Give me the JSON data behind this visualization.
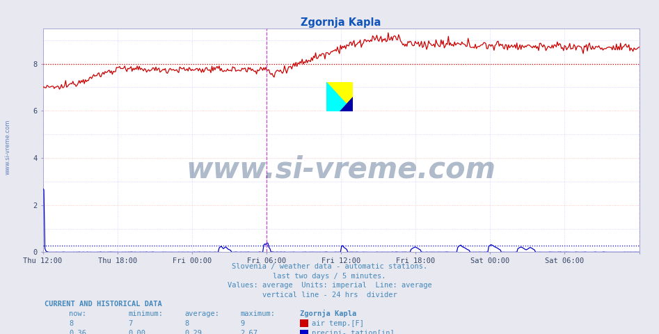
{
  "title": "Zgornja Kapla",
  "title_color": "#1155bb",
  "bg_color": "#e8e8f0",
  "plot_bg_color": "#ffffff",
  "grid_color_major": "#ffbbbb",
  "grid_color_minor": "#ccccff",
  "x_labels": [
    "Thu 12:00",
    "Thu 18:00",
    "Fri 00:00",
    "Fri 06:00",
    "Fri 12:00",
    "Fri 18:00",
    "Sat 00:00",
    "Sat 06:00"
  ],
  "ylim": [
    0,
    9.5
  ],
  "yticks": [
    0,
    2,
    4,
    6,
    8
  ],
  "air_temp_avg": 8.0,
  "air_temp_color": "#cc0000",
  "precip_avg": 0.29,
  "precip_color": "#0000cc",
  "vline_24h_color": "#cc44cc",
  "vline_end_color": "#cc44cc",
  "watermark_text": "www.si-vreme.com",
  "watermark_color": "#1a3a6a",
  "watermark_alpha": 0.35,
  "footer_lines": [
    "Slovenia / weather data - automatic stations.",
    "last two days / 5 minutes.",
    "Values: average  Units: imperial  Line: average",
    "vertical line - 24 hrs  divider"
  ],
  "footer_color": "#4488bb",
  "current_label": "CURRENT AND HISTORICAL DATA",
  "now_air": "8",
  "min_air": "7",
  "avg_air": "8",
  "max_air": "9",
  "now_precip": "0.36",
  "min_precip": "0.00",
  "avg_precip": "0.29",
  "max_precip": "2.67",
  "n_points": 576,
  "sidebar_color": "#5577bb"
}
